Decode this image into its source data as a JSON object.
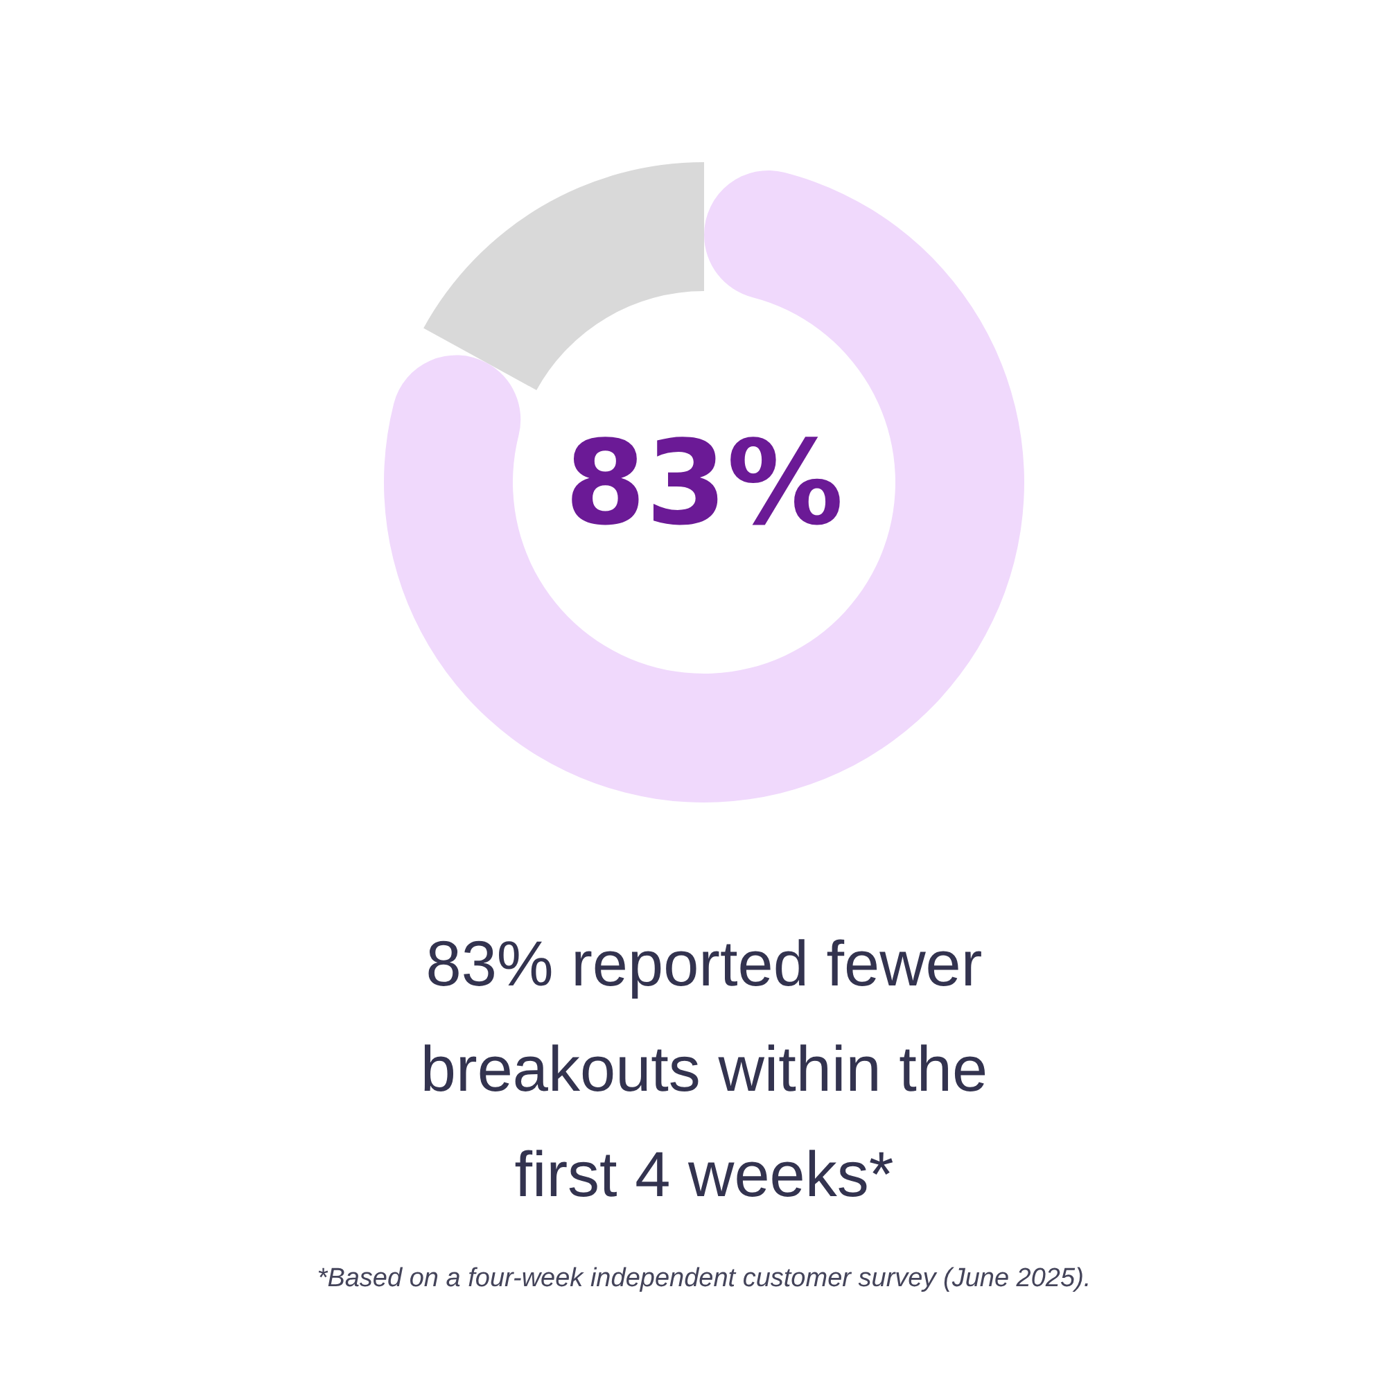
{
  "chart_data": {
    "type": "donut",
    "title": "83% reported fewer breakouts within the first 4 weeks*",
    "categories": [
      null,
      null
    ],
    "values": [
      83,
      17
    ],
    "colors": [
      "#f0d9fc",
      "#d9d9d9"
    ],
    "value_labels": [
      "83%",
      null
    ],
    "annotations": [
      "*Based on a four-week independent customer survey (June 2025)."
    ]
  }
}
